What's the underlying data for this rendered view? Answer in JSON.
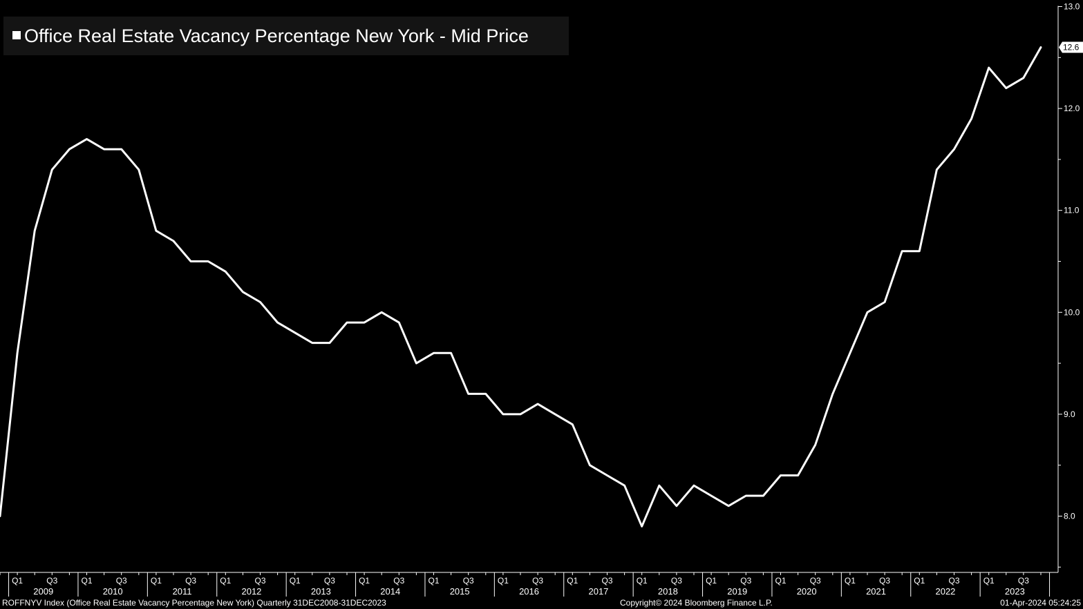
{
  "chart_data": {
    "type": "line",
    "title": "Office Real Estate Vacancy Percentage New York - Mid Price",
    "frequency": "quarterly",
    "series": [
      {
        "name": "Office Real Estate Vacancy Percentage New York - Mid Price",
        "color": "#ffffff",
        "x": [
          "2008-Q4",
          "2009-Q1",
          "2009-Q2",
          "2009-Q3",
          "2009-Q4",
          "2010-Q1",
          "2010-Q2",
          "2010-Q3",
          "2010-Q4",
          "2011-Q1",
          "2011-Q2",
          "2011-Q3",
          "2011-Q4",
          "2012-Q1",
          "2012-Q2",
          "2012-Q3",
          "2012-Q4",
          "2013-Q1",
          "2013-Q2",
          "2013-Q3",
          "2013-Q4",
          "2014-Q1",
          "2014-Q2",
          "2014-Q3",
          "2014-Q4",
          "2015-Q1",
          "2015-Q2",
          "2015-Q3",
          "2015-Q4",
          "2016-Q1",
          "2016-Q2",
          "2016-Q3",
          "2016-Q4",
          "2017-Q1",
          "2017-Q2",
          "2017-Q3",
          "2017-Q4",
          "2018-Q1",
          "2018-Q2",
          "2018-Q3",
          "2018-Q4",
          "2019-Q1",
          "2019-Q2",
          "2019-Q3",
          "2019-Q4",
          "2020-Q1",
          "2020-Q2",
          "2020-Q3",
          "2020-Q4",
          "2021-Q1",
          "2021-Q2",
          "2021-Q3",
          "2021-Q4",
          "2022-Q1",
          "2022-Q2",
          "2022-Q3",
          "2022-Q4",
          "2023-Q1",
          "2023-Q2",
          "2023-Q3",
          "2023-Q4"
        ],
        "values": [
          8.0,
          9.6,
          10.8,
          11.4,
          11.6,
          11.7,
          11.6,
          11.6,
          11.4,
          10.8,
          10.7,
          10.5,
          10.5,
          10.4,
          10.2,
          10.1,
          9.9,
          9.8,
          9.7,
          9.7,
          9.9,
          9.9,
          10.0,
          9.9,
          9.5,
          9.6,
          9.6,
          9.2,
          9.2,
          9.0,
          9.0,
          9.1,
          9.0,
          8.9,
          8.5,
          8.4,
          8.3,
          7.9,
          8.3,
          8.1,
          8.3,
          8.2,
          8.1,
          8.2,
          8.2,
          8.4,
          8.4,
          8.7,
          9.2,
          9.6,
          10.0,
          10.1,
          10.6,
          10.6,
          11.4,
          11.6,
          11.9,
          12.4,
          12.2,
          12.3,
          12.6
        ]
      }
    ],
    "last_value_label": "12.6",
    "y_axis": {
      "position": "right",
      "ylim": [
        7.5,
        13.0
      ],
      "ticks": [
        "8.0",
        "9.0",
        "10.0",
        "11.0",
        "12.0",
        "13.0"
      ]
    },
    "x_axis": {
      "quarter_ticks": [
        "Q1",
        "Q3"
      ],
      "years": [
        "2009",
        "2010",
        "2011",
        "2012",
        "2013",
        "2014",
        "2015",
        "2016",
        "2017",
        "2018",
        "2019",
        "2020",
        "2021",
        "2022",
        "2023"
      ]
    },
    "grid": false,
    "legend": "top-left"
  },
  "footer": {
    "left": "ROFFNYV Index (Office Real Estate Vacancy Percentage New York)  Quarterly 31DEC2008-31DEC2023",
    "center": "Copyright© 2024 Bloomberg Finance L.P.",
    "right": "01-Apr-2024 05:24:25"
  },
  "colors": {
    "background": "#000000",
    "line": "#ffffff",
    "legend_box": "#141414"
  }
}
